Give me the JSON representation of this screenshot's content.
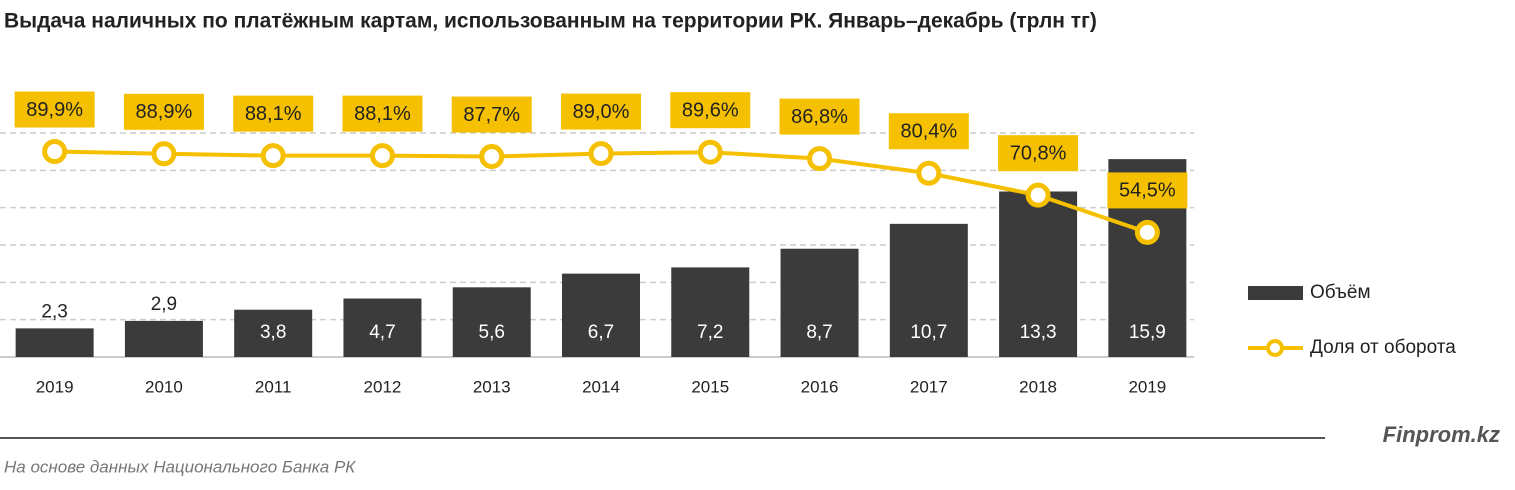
{
  "chart_data": {
    "type": "bar-line",
    "title": "Выдача наличных по платёжным картам, использованным на территории РК.  Январь–декабрь (трлн тг)",
    "categories": [
      "2019",
      "2010",
      "2011",
      "2012",
      "2013",
      "2014",
      "2015",
      "2016",
      "2017",
      "2018",
      "2019"
    ],
    "series": [
      {
        "name": "Объём",
        "type": "bar",
        "color": "#3b3b3b",
        "values": [
          2.3,
          2.9,
          3.8,
          4.7,
          5.6,
          6.7,
          7.2,
          8.7,
          10.7,
          13.3,
          15.9
        ],
        "value_labels": [
          "2,3",
          "2,9",
          "3,8",
          "4,7",
          "5,6",
          "6,7",
          "7,2",
          "8,7",
          "10,7",
          "13,3",
          "15,9"
        ]
      },
      {
        "name": "Доля от оборота",
        "type": "line",
        "axis": "y2",
        "color": "#f5c000",
        "values": [
          89.9,
          88.9,
          88.1,
          88.1,
          87.7,
          89.0,
          89.6,
          86.8,
          80.4,
          70.8,
          54.5
        ],
        "value_labels": [
          "89,9%",
          "88,9%",
          "88,1%",
          "88,1%",
          "87,7%",
          "89,0%",
          "89,6%",
          "86,8%",
          "80,4%",
          "70,8%",
          "54,5%"
        ]
      }
    ],
    "ylim": [
      0,
      18
    ],
    "yticks": [
      0,
      3,
      6,
      9,
      12,
      15,
      18
    ],
    "tick_labels": false,
    "y2lim": [
      0,
      98
    ],
    "grid": true,
    "legend": "right",
    "brand": "Finprom.kz",
    "source": "На основе данных  Национального  Банка РК"
  }
}
